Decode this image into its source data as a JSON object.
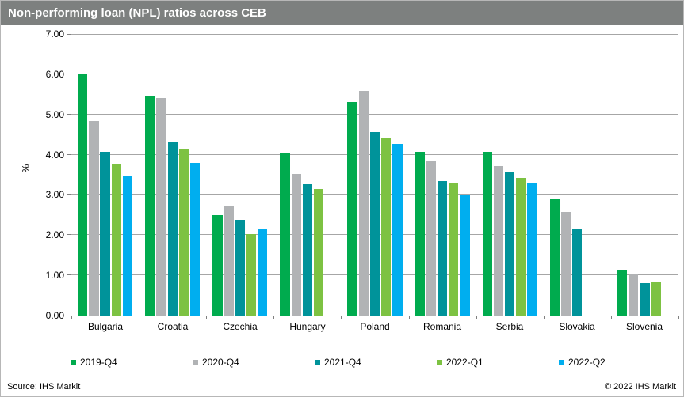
{
  "header": {
    "title": "Non-performing loan (NPL) ratios across CEB"
  },
  "footer": {
    "source": "Source: IHS Markit",
    "copyright": "© 2022  IHS Markit"
  },
  "colors": {
    "header_bg": "#7d807f",
    "header_text": "#ffffff",
    "gridline": "#a6a6a6",
    "axis_line": "#808080",
    "text": "#000000",
    "page_border": "#b7b7b7"
  },
  "chart_data": {
    "type": "bar",
    "title": "Non-performing loan (NPL) ratios across CEB",
    "xlabel": "",
    "ylabel": "%",
    "ylim": [
      0,
      7
    ],
    "ytick_interval": 1,
    "ytick_decimals": 2,
    "grid": true,
    "legend_position": "bottom",
    "categories": [
      "Bulgaria",
      "Croatia",
      "Czechia",
      "Hungary",
      "Poland",
      "Romania",
      "Serbia",
      "Slovakia",
      "Slovenia"
    ],
    "series": [
      {
        "name": "2019-Q4",
        "color": "#00ab4e",
        "values": [
          6.0,
          5.45,
          2.49,
          4.05,
          5.31,
          4.08,
          4.08,
          2.9,
          1.13
        ]
      },
      {
        "name": "2020-Q4",
        "color": "#b1b3b5",
        "values": [
          4.83,
          5.41,
          2.73,
          3.53,
          5.59,
          3.83,
          3.71,
          2.57,
          1.03
        ]
      },
      {
        "name": "2021-Q4",
        "color": "#00939a",
        "values": [
          4.08,
          4.3,
          2.38,
          3.27,
          4.57,
          3.34,
          3.56,
          2.17,
          0.81
        ]
      },
      {
        "name": "2022-Q1",
        "color": "#7dc242",
        "values": [
          3.77,
          4.15,
          2.03,
          3.14,
          4.43,
          3.3,
          3.42,
          null,
          0.84
        ]
      },
      {
        "name": "2022-Q2",
        "color": "#00aeef",
        "values": [
          3.46,
          3.8,
          2.14,
          null,
          4.26,
          3.0,
          3.29,
          null,
          null
        ]
      }
    ]
  }
}
